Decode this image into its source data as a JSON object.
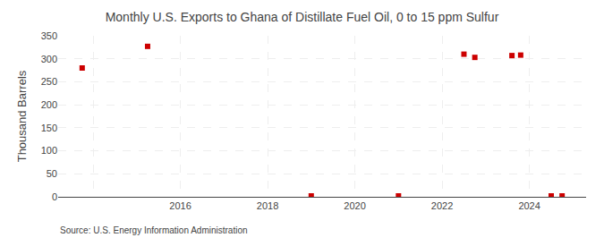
{
  "chart_data": {
    "type": "scatter",
    "title": "Monthly U.S. Exports to Ghana of Distillate Fuel Oil, 0 to 15 ppm Sulfur",
    "y_label": "Thousand Barrels",
    "annotations": [
      "Source: U.S. Energy Information Administration"
    ],
    "x": [
      2013.75,
      2015.25,
      2019.0,
      2021.0,
      2022.5,
      2022.75,
      2023.6,
      2023.8,
      2024.5,
      2024.75
    ],
    "values": [
      280,
      327,
      2,
      2,
      310,
      303,
      307,
      308,
      2,
      2
    ],
    "color": "#cc0000",
    "marker": "square",
    "xlim": [
      2013.2,
      2025.3
    ],
    "ylim": [
      0,
      350
    ],
    "xticks": [
      {
        "value": 2014,
        "label": null
      },
      2016,
      2018,
      2020,
      2022,
      2024
    ],
    "yticks": [
      0,
      50,
      100,
      150,
      200,
      250,
      300,
      350
    ],
    "grid": true
  }
}
